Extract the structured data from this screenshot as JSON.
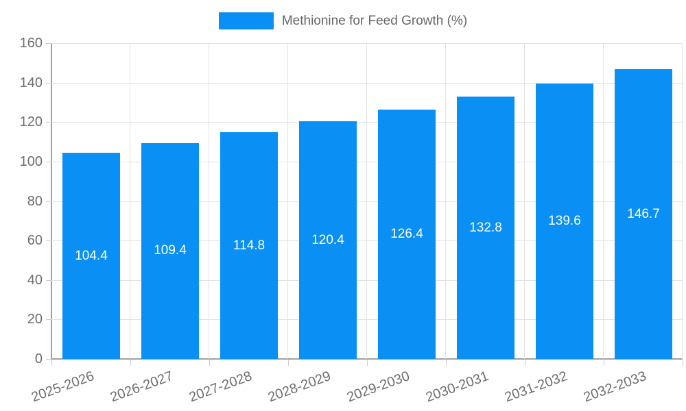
{
  "legend": {
    "items": [
      {
        "label": "Methionine for Feed Growth (%)",
        "color": "#0a90f4"
      }
    ]
  },
  "chart_data": {
    "type": "bar",
    "title": "",
    "categories": [
      "2025-2026",
      "2026-2027",
      "2027-2028",
      "2028-2029",
      "2029-2030",
      "2030-2031",
      "2031-2032",
      "2032-2033"
    ],
    "series": [
      {
        "name": "Methionine for Feed Growth (%)",
        "values": [
          104.4,
          109.4,
          114.8,
          120.4,
          126.4,
          132.8,
          139.6,
          146.7
        ],
        "color": "#0a90f4"
      }
    ],
    "value_labels": [
      "104.4",
      "109.4",
      "114.8",
      "120.4",
      "126.4",
      "132.8",
      "139.6",
      "146.7"
    ],
    "xlabel": "",
    "ylabel": "",
    "ylim": [
      0,
      160
    ],
    "yticks": [
      0,
      20,
      40,
      60,
      80,
      100,
      120,
      140,
      160
    ],
    "grid": true,
    "legend_position": "top",
    "value_label_style": {
      "color": "#ffffff",
      "position": "inside-middle"
    }
  }
}
